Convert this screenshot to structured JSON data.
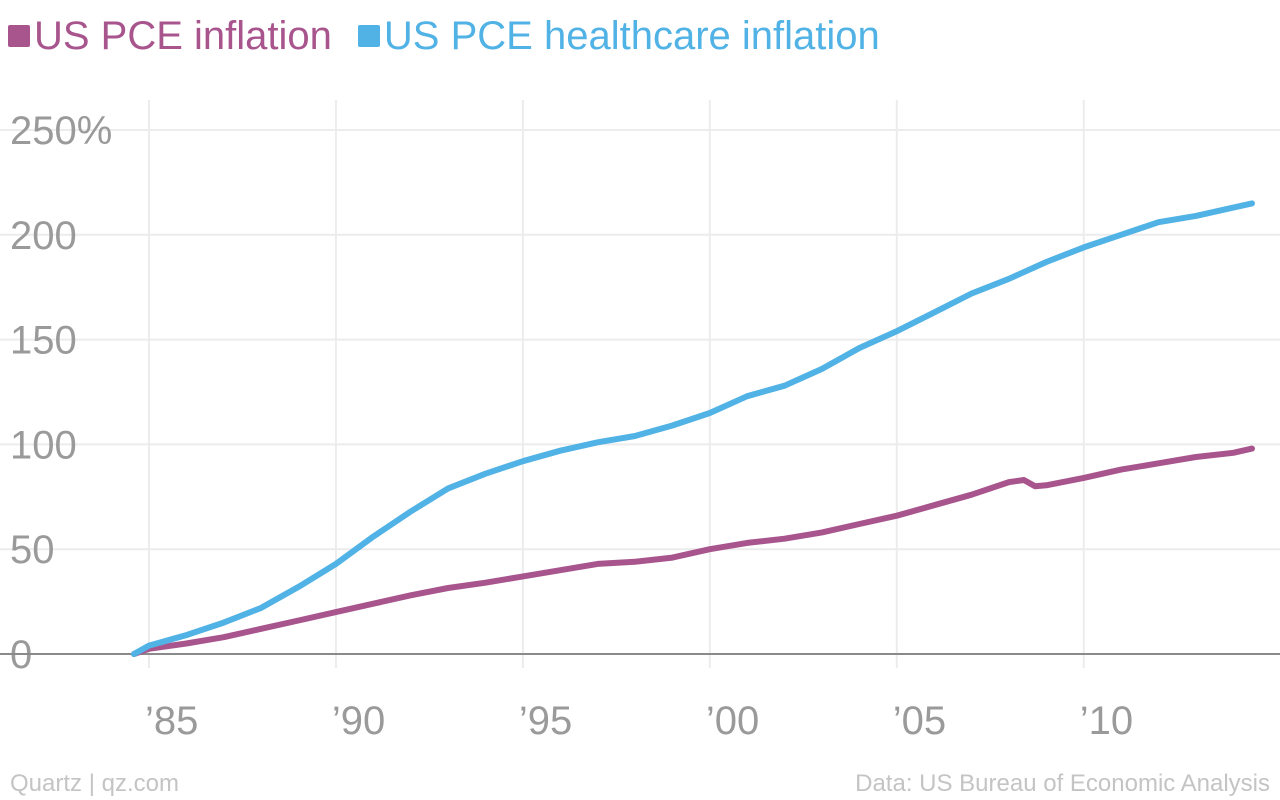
{
  "chart_data": {
    "type": "line",
    "title": "",
    "xlabel": "",
    "ylabel": "",
    "xlim": [
      1984.6,
      2014.5
    ],
    "ylim": [
      0,
      250
    ],
    "y_ticks": [
      0,
      50,
      100,
      150,
      200,
      250
    ],
    "y_tick_labels": [
      "0",
      "50",
      "100",
      "150",
      "200",
      "250%"
    ],
    "x_ticks": [
      1985,
      1990,
      1995,
      2000,
      2005,
      2010
    ],
    "x_tick_labels": [
      "’85",
      "’90",
      "’95",
      "’00",
      "’05",
      "’10"
    ],
    "grid": true,
    "legend_position": "top-left",
    "series": [
      {
        "name": "US PCE inflation",
        "color": "#a8558e",
        "x": [
          1984.6,
          1985,
          1986,
          1987,
          1988,
          1989,
          1990,
          1991,
          1992,
          1993,
          1994,
          1995,
          1996,
          1997,
          1998,
          1999,
          2000,
          2001,
          2002,
          2003,
          2004,
          2005,
          2006,
          2007,
          2008,
          2008.4,
          2008.7,
          2009,
          2010,
          2011,
          2012,
          2013,
          2014,
          2014.5
        ],
        "values": [
          0,
          2.5,
          5,
          8,
          12,
          16,
          20,
          24,
          28,
          31.5,
          34,
          37,
          40,
          43,
          44,
          46,
          50,
          53,
          55,
          58,
          62,
          66,
          71,
          76,
          82,
          83,
          80,
          80.5,
          84,
          88,
          91,
          94,
          96,
          98
        ]
      },
      {
        "name": "US PCE healthcare inflation",
        "color": "#51b2e5",
        "x": [
          1984.6,
          1985,
          1986,
          1987,
          1988,
          1989,
          1990,
          1991,
          1992,
          1993,
          1994,
          1995,
          1996,
          1997,
          1998,
          1999,
          2000,
          2001,
          2002,
          2003,
          2004,
          2005,
          2006,
          2007,
          2008,
          2009,
          2010,
          2011,
          2012,
          2013,
          2014,
          2014.5
        ],
        "values": [
          0,
          4,
          9,
          15,
          22,
          32,
          43,
          56,
          68,
          79,
          86,
          92,
          97,
          101,
          104,
          109,
          115,
          123,
          128,
          136,
          146,
          154,
          163,
          172,
          179,
          187,
          194,
          200,
          206,
          209,
          213,
          215
        ]
      }
    ]
  },
  "footer": {
    "source_left": "Quartz | qz.com",
    "source_right": "Data: US Bureau of Economic Analysis"
  }
}
